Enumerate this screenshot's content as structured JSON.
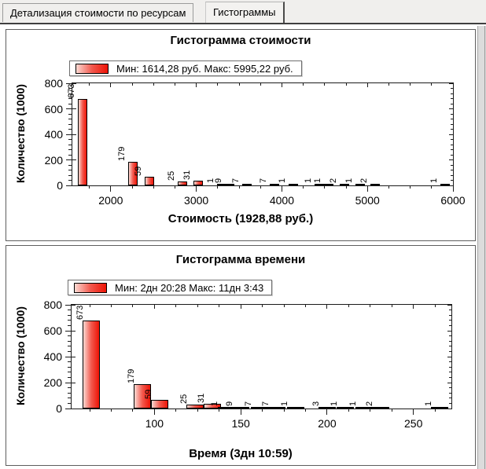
{
  "tabs": [
    {
      "label": "Детализация стоимости по ресурсам",
      "active": false
    },
    {
      "label": "Гистограммы",
      "active": true
    }
  ],
  "colors": {
    "bar_red": "#ee1406",
    "bar_mid": "#f2594e",
    "bar_light": "#fcd9d2",
    "axis": "#1b1b1b",
    "panel_bg": "#ffffff",
    "page_bg": "#f0efed"
  },
  "chart_data": [
    {
      "type": "bar",
      "title": "Гистограмма стоимости",
      "legend": "Мин: 1614,28 руб. Макс: 5995,22 руб.",
      "xlabel": "Стоимость (1928,88 руб.)",
      "ylabel": "Количество (1000)",
      "xlim": [
        1551,
        6000
      ],
      "ylim": [
        0,
        800
      ],
      "x_ticks": [
        2000,
        3000,
        4000,
        5000,
        6000
      ],
      "x_minor_step": 250,
      "y_ticks": [
        0,
        200,
        400,
        600,
        800
      ],
      "y_minor_step": 40,
      "bar_width_units": 110,
      "bars": [
        {
          "x": 1671,
          "v": 673
        },
        {
          "x": 2258,
          "v": 179
        },
        {
          "x": 2450,
          "v": 59
        },
        {
          "x": 2837,
          "v": 25
        },
        {
          "x": 3024,
          "v": 31
        },
        {
          "x": 3299,
          "v": 1
        },
        {
          "x": 3388,
          "v": 9
        },
        {
          "x": 3593,
          "v": 7
        },
        {
          "x": 3913,
          "v": 7
        },
        {
          "x": 4136,
          "v": 1
        },
        {
          "x": 4438,
          "v": 1
        },
        {
          "x": 4550,
          "v": 1
        },
        {
          "x": 4732,
          "v": 2
        },
        {
          "x": 4915,
          "v": 1
        },
        {
          "x": 5088,
          "v": 2
        },
        {
          "x": 5907,
          "v": 1
        }
      ]
    },
    {
      "type": "bar",
      "title": "Гистограмма времени",
      "legend": "Мин: 2дн 20:28 Макс: 11дн 3:43",
      "xlabel": "Время (3дн 10:59)",
      "ylabel": "Количество (1000)",
      "xlim": [
        52,
        272
      ],
      "ylim": [
        0,
        800
      ],
      "x_ticks": [
        100,
        150,
        200,
        250
      ],
      "x_minor_step": 12.5,
      "y_ticks": [
        0,
        200,
        400,
        600,
        800
      ],
      "y_minor_step": 40,
      "bar_width_units": 10,
      "bars": [
        {
          "x": 63.5,
          "v": 673
        },
        {
          "x": 93,
          "v": 179
        },
        {
          "x": 103,
          "v": 59
        },
        {
          "x": 123.5,
          "v": 25
        },
        {
          "x": 133.5,
          "v": 31
        },
        {
          "x": 141.5,
          "v": 1
        },
        {
          "x": 150,
          "v": 9
        },
        {
          "x": 161,
          "v": 7
        },
        {
          "x": 171,
          "v": 7
        },
        {
          "x": 182,
          "v": 1
        },
        {
          "x": 200,
          "v": 3
        },
        {
          "x": 210.5,
          "v": 1
        },
        {
          "x": 221.5,
          "v": 1
        },
        {
          "x": 231,
          "v": 2
        },
        {
          "x": 265,
          "v": 1
        }
      ]
    }
  ]
}
